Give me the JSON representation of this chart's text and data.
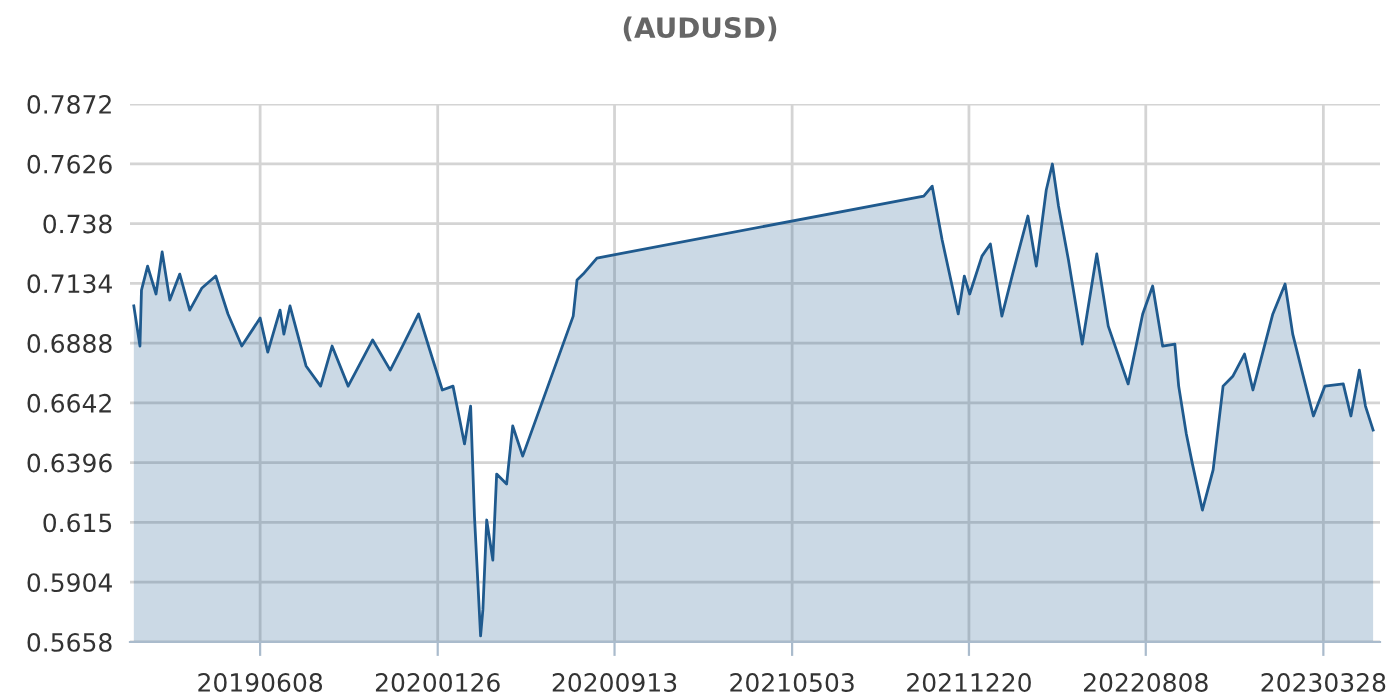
{
  "chart_data": {
    "type": "area",
    "title": "(AUDUSD)",
    "x": [
      "2018-12-25",
      "2019-01-02",
      "2019-01-04",
      "2019-01-12",
      "2019-01-23",
      "2019-01-31",
      "2019-02-10",
      "2019-02-23",
      "2019-03-08",
      "2019-03-24",
      "2019-04-11",
      "2019-04-27",
      "2019-05-15",
      "2019-06-08",
      "2019-06-18",
      "2019-07-04",
      "2019-07-09",
      "2019-07-17",
      "2019-08-07",
      "2019-08-26",
      "2019-09-10",
      "2019-10-01",
      "2019-11-02",
      "2019-11-25",
      "2019-12-11",
      "2020-01-01",
      "2020-01-14",
      "2020-02-01",
      "2020-02-15",
      "2020-03-01",
      "2020-03-09",
      "2020-03-14",
      "2020-03-22",
      "2020-03-25",
      "2020-03-30",
      "2020-04-07",
      "2020-04-12",
      "2020-04-25",
      "2020-05-03",
      "2020-05-16",
      "2020-07-21",
      "2020-07-26",
      "2020-08-03",
      "2020-08-21",
      "2021-10-22",
      "2021-11-02",
      "2021-11-15",
      "2021-12-06",
      "2021-12-14",
      "2021-12-21",
      "2022-01-06",
      "2022-01-17",
      "2022-02-01",
      "2022-02-15",
      "2022-03-07",
      "2022-03-18",
      "2022-03-31",
      "2022-04-08",
      "2022-04-16",
      "2022-04-29",
      "2022-05-17",
      "2022-06-05",
      "2022-06-20",
      "2022-07-16",
      "2022-08-04",
      "2022-08-17",
      "2022-08-30",
      "2022-09-15",
      "2022-09-20",
      "2022-09-30",
      "2022-10-08",
      "2022-10-21",
      "2022-11-04",
      "2022-11-17",
      "2022-11-30",
      "2022-12-15",
      "2022-12-26",
      "2023-01-21",
      "2023-02-06",
      "2023-02-16",
      "2023-03-01",
      "2023-03-15",
      "2023-03-30",
      "2023-04-23",
      "2023-05-03",
      "2023-05-14",
      "2023-05-22",
      "2023-06-01"
    ],
    "series": [
      {
        "color": "#1f5a8e",
        "values": [
          0.7041,
          0.6876,
          0.7106,
          0.7205,
          0.709,
          0.7263,
          0.7065,
          0.7172,
          0.7024,
          0.7115,
          0.7164,
          0.7008,
          0.6876,
          0.6991,
          0.6851,
          0.7024,
          0.6925,
          0.7041,
          0.6794,
          0.6711,
          0.6876,
          0.6711,
          0.6901,
          0.6777,
          0.6876,
          0.7008,
          0.6876,
          0.6695,
          0.6711,
          0.6473,
          0.6629,
          0.6176,
          0.5683,
          0.579,
          0.616,
          0.5995,
          0.6349,
          0.6308,
          0.6547,
          0.6423,
          0.6999,
          0.7148,
          0.7172,
          0.7238,
          0.7493,
          0.7534,
          0.7312,
          0.7008,
          0.7164,
          0.709,
          0.7246,
          0.7296,
          0.6999,
          0.7172,
          0.7411,
          0.7205,
          0.7518,
          0.7625,
          0.7452,
          0.723,
          0.6884,
          0.7255,
          0.6958,
          0.672,
          0.7008,
          0.7123,
          0.6876,
          0.6884,
          0.6711,
          0.6514,
          0.639,
          0.6201,
          0.6366,
          0.6711,
          0.6753,
          0.6843,
          0.6695,
          0.7008,
          0.7131,
          0.6925,
          0.6761,
          0.6588,
          0.6711,
          0.672,
          0.6588,
          0.6777,
          0.6629,
          0.653
        ]
      }
    ],
    "xlim": [
      "2018-12-20",
      "2023-06-10"
    ],
    "xticks": [
      {
        "value": "2019-06-08",
        "label": "20190608"
      },
      {
        "value": "2020-01-26",
        "label": "20200126"
      },
      {
        "value": "2020-09-13",
        "label": "20200913"
      },
      {
        "value": "2021-05-03",
        "label": "20210503"
      },
      {
        "value": "2021-12-20",
        "label": "20211220"
      },
      {
        "value": "2022-08-08",
        "label": "20220808"
      },
      {
        "value": "2023-03-28",
        "label": "20230328"
      }
    ],
    "ylim": [
      0.5658,
      0.7872
    ],
    "yticks": [
      0.5658,
      0.5904,
      0.615,
      0.6396,
      0.6642,
      0.6888,
      0.7134,
      0.738,
      0.7626,
      0.7872
    ],
    "grid": true
  }
}
